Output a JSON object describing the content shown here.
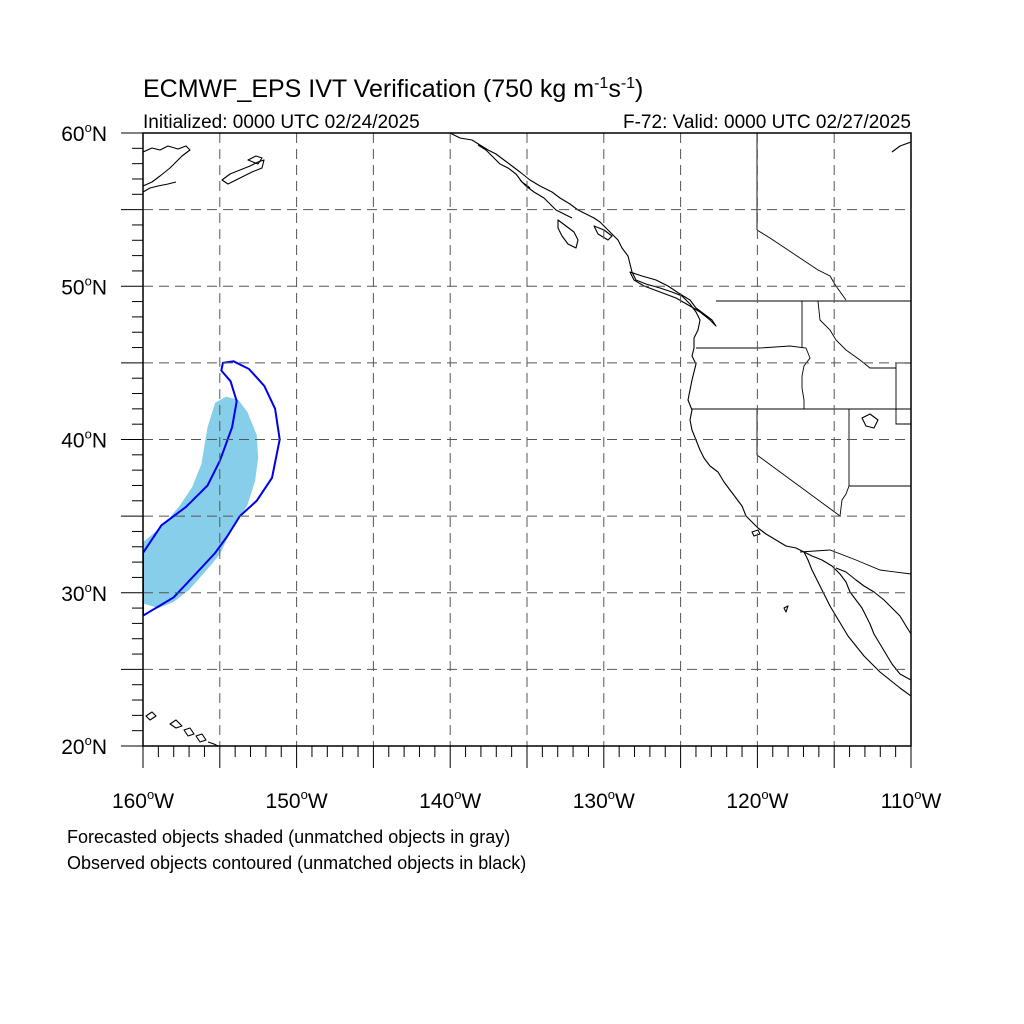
{
  "title": {
    "prefix": "ECMWF_EPS IVT Verification (750 kg m",
    "exp1": "-1",
    "mid": "s",
    "exp2": "-1",
    "suffix": ")"
  },
  "subtitle_left": "Initialized: 0000 UTC 02/24/2025",
  "subtitle_right": "F-72: Valid: 0000 UTC 02/27/2025",
  "axes": {
    "lon_range": [
      -160,
      -110
    ],
    "lat_range": [
      20,
      60
    ],
    "lon_labels": [
      {
        "lon": -160,
        "text": "160"
      },
      {
        "lon": -150,
        "text": "150"
      },
      {
        "lon": -140,
        "text": "140"
      },
      {
        "lon": -130,
        "text": "130"
      },
      {
        "lon": -120,
        "text": "120"
      },
      {
        "lon": -110,
        "text": "110"
      }
    ],
    "lon_suffix": "W",
    "lat_labels": [
      {
        "lat": 60,
        "text": "60"
      },
      {
        "lat": 50,
        "text": "50"
      },
      {
        "lat": 40,
        "text": "40"
      },
      {
        "lat": 30,
        "text": "30"
      },
      {
        "lat": 20,
        "text": "20"
      }
    ],
    "lat_suffix": "N",
    "degree_symbol": "o",
    "grid_lon_step": 5,
    "grid_lat_step": 5
  },
  "legend": {
    "line1": "Forecasted objects shaded (unmatched objects in gray)",
    "line2": "Observed objects contoured (unmatched objects in black)"
  },
  "colors": {
    "forecast_fill": "#87ceeb",
    "observed_contour": "#0000ee",
    "coast": "#000000",
    "grid": "#555555"
  },
  "forecast_object": [
    [
      -160.0,
      29.3
    ],
    [
      -159.0,
      29.0
    ],
    [
      -158.0,
      29.4
    ],
    [
      -157.0,
      30.2
    ],
    [
      -156.0,
      31.3
    ],
    [
      -155.0,
      32.5
    ],
    [
      -154.2,
      34.2
    ],
    [
      -153.2,
      35.7
    ],
    [
      -152.7,
      37.3
    ],
    [
      -152.5,
      38.8
    ],
    [
      -152.6,
      40.3
    ],
    [
      -153.2,
      41.8
    ],
    [
      -153.8,
      42.6
    ],
    [
      -154.6,
      42.8
    ],
    [
      -155.3,
      42.4
    ],
    [
      -155.8,
      40.8
    ],
    [
      -156.2,
      38.4
    ],
    [
      -156.8,
      36.9
    ],
    [
      -157.6,
      35.7
    ],
    [
      -158.5,
      34.6
    ],
    [
      -159.4,
      33.8
    ],
    [
      -160.0,
      33.3
    ]
  ],
  "observed_object": [
    [
      -160.0,
      28.5
    ],
    [
      -159.0,
      29.1
    ],
    [
      -158.0,
      29.7
    ],
    [
      -156.6,
      31.2
    ],
    [
      -155.3,
      32.6
    ],
    [
      -154.5,
      33.7
    ],
    [
      -153.7,
      35.0
    ],
    [
      -152.6,
      36.0
    ],
    [
      -151.6,
      37.5
    ],
    [
      -151.1,
      40.0
    ],
    [
      -151.4,
      42.0
    ],
    [
      -152.1,
      43.5
    ],
    [
      -153.1,
      44.6
    ],
    [
      -154.1,
      45.1
    ],
    [
      -154.8,
      45.0
    ],
    [
      -154.9,
      44.5
    ],
    [
      -154.3,
      43.8
    ],
    [
      -153.9,
      42.5
    ],
    [
      -154.2,
      40.8
    ],
    [
      -155.0,
      38.6
    ],
    [
      -155.8,
      37.0
    ],
    [
      -157.2,
      35.6
    ],
    [
      -158.8,
      34.4
    ],
    [
      -160.0,
      32.6
    ]
  ]
}
